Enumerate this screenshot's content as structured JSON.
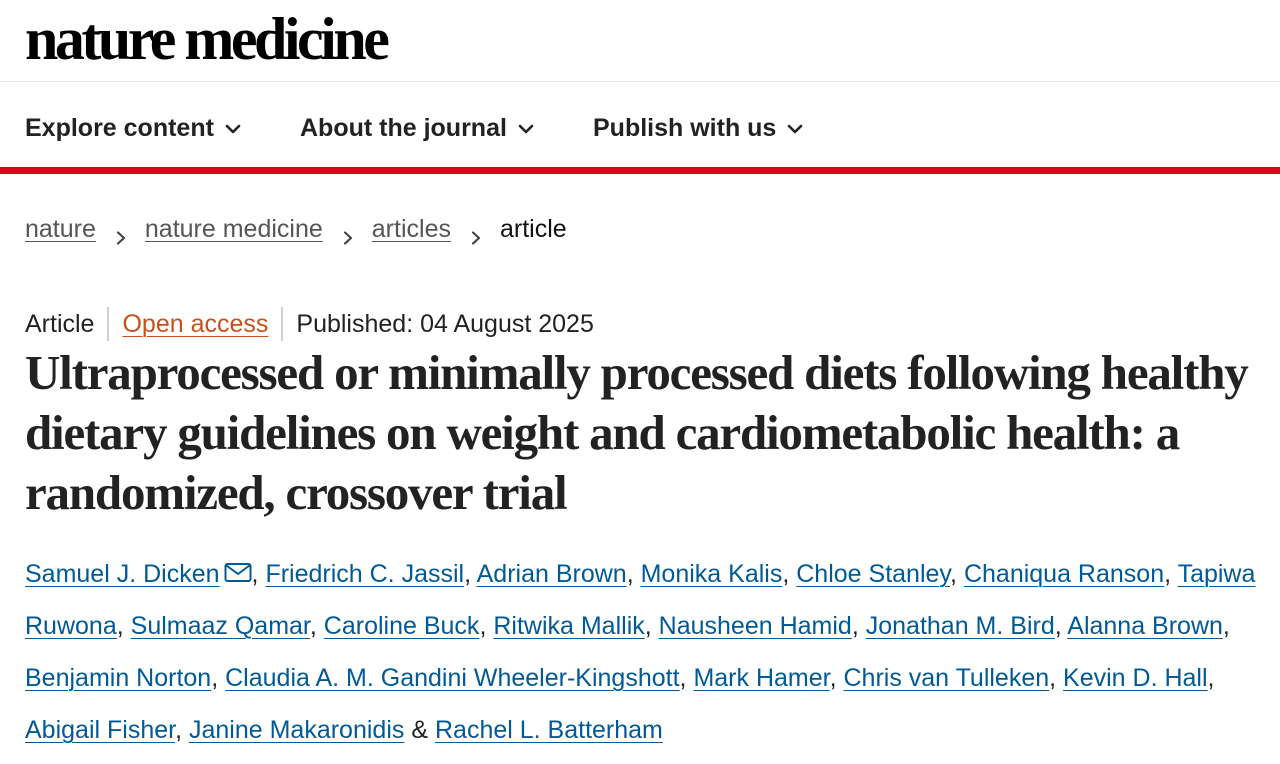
{
  "brand": {
    "logo": "nature medicine"
  },
  "nav": {
    "items": [
      {
        "label": "Explore content",
        "icon": "chevron-down-icon"
      },
      {
        "label": "About the journal",
        "icon": "chevron-down-icon"
      },
      {
        "label": "Publish with us",
        "icon": "chevron-down-icon"
      }
    ]
  },
  "colors": {
    "accent": "#e0001b",
    "link": "#005a96",
    "open_access": "#c7511a"
  },
  "breadcrumb": {
    "items": [
      {
        "label": "nature"
      },
      {
        "label": "nature medicine"
      },
      {
        "label": "articles"
      }
    ],
    "current": "article"
  },
  "article": {
    "type": "Article",
    "access": "Open access",
    "published": "Published: 04 August 2025",
    "title": "Ultraprocessed or minimally processed diets following healthy dietary guidelines on weight and cardiometabolic health: a randomized, crossover trial",
    "authors": [
      "Samuel J. Dicken",
      "Friedrich C. Jassil",
      "Adrian Brown",
      "Monika Kalis",
      "Chloe Stanley",
      "Chaniqua Ranson",
      "Tapiwa Ruwona",
      "Sulmaaz Qamar",
      "Caroline Buck",
      "Ritwika Mallik",
      "Nausheen Hamid",
      "Jonathan M. Bird",
      "Alanna Brown",
      "Benjamin Norton",
      "Claudia A. M. Gandini Wheeler-Kingshott",
      "Mark Hamer",
      "Chris van Tulleken",
      "Kevin D. Hall",
      "Abigail Fisher",
      "Janine Makaronidis",
      "Rachel L. Batterham"
    ],
    "author_separator": ",",
    "final_separator": "&",
    "corresponding_icon": "mail-icon"
  }
}
